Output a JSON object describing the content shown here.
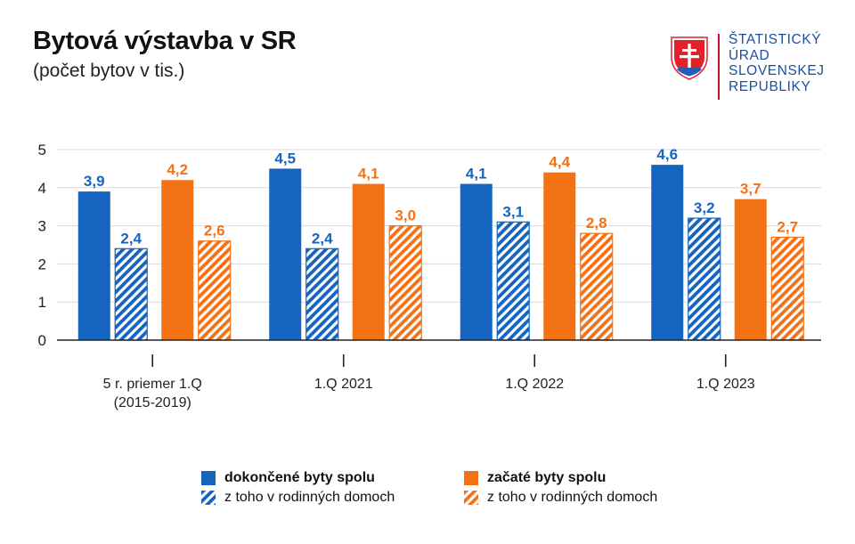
{
  "header": {
    "title": "Bytová výstavba v SR",
    "subtitle": "(počet bytov v tis.)"
  },
  "logo": {
    "lines": [
      "ŠTATISTICKÝ",
      "ÚRAD",
      "SLOVENSKEJ",
      "REPUBLIKY"
    ],
    "icon": "slovak-coat-of-arms-icon",
    "colors": {
      "text": "#1b4f9c",
      "shield_red": "#e4202a",
      "shield_blue": "#1f5fb8",
      "divider": "#c8102e"
    }
  },
  "legend": {
    "items": [
      {
        "label": "dokončené byty spolu",
        "bold": true
      },
      {
        "label": "začaté byty spolu",
        "bold": true
      },
      {
        "label": "z toho v rodinných domoch",
        "bold": false
      },
      {
        "label": "z toho v rodinných domoch",
        "bold": false
      }
    ]
  },
  "colors": {
    "blue": "#1565c0",
    "orange": "#f47216",
    "grid": "#d9d9d9",
    "axis": "#222222"
  },
  "chart_data": {
    "type": "bar",
    "title": "Bytová výstavba v SR",
    "subtitle": "(počet bytov v tis.)",
    "categories": [
      "5 r. priemer 1.Q (2015-2019)",
      "1.Q 2021",
      "1.Q 2022",
      "1.Q 2023"
    ],
    "category_lines": [
      [
        "5 r. priemer 1.Q",
        "(2015-2019)"
      ],
      [
        "1.Q 2021"
      ],
      [
        "1.Q 2022"
      ],
      [
        "1.Q 2023"
      ]
    ],
    "series": [
      {
        "name": "dokončené byty spolu",
        "values": [
          3.9,
          4.5,
          4.1,
          4.6
        ],
        "labels": [
          "3,9",
          "4,5",
          "4,1",
          "4,6"
        ],
        "color": "#1565c0",
        "pattern": "solid"
      },
      {
        "name": "z toho v rodinných domoch",
        "values": [
          2.4,
          2.4,
          3.1,
          3.2
        ],
        "labels": [
          "2,4",
          "2,4",
          "3,1",
          "3,2"
        ],
        "color": "#1565c0",
        "pattern": "hatched"
      },
      {
        "name": "začaté byty spolu",
        "values": [
          4.2,
          4.1,
          4.4,
          3.7
        ],
        "labels": [
          "4,2",
          "4,1",
          "4,4",
          "3,7"
        ],
        "color": "#f47216",
        "pattern": "solid"
      },
      {
        "name": "z toho v rodinných domoch",
        "values": [
          2.6,
          3.0,
          2.8,
          2.7
        ],
        "labels": [
          "2,6",
          "3,0",
          "2,8",
          "2,7"
        ],
        "color": "#f47216",
        "pattern": "hatched"
      }
    ],
    "yticks": [
      "0",
      "1",
      "2",
      "3",
      "4",
      "5"
    ],
    "ylim": [
      0,
      5
    ],
    "grid": true,
    "legend_position": "bottom"
  }
}
